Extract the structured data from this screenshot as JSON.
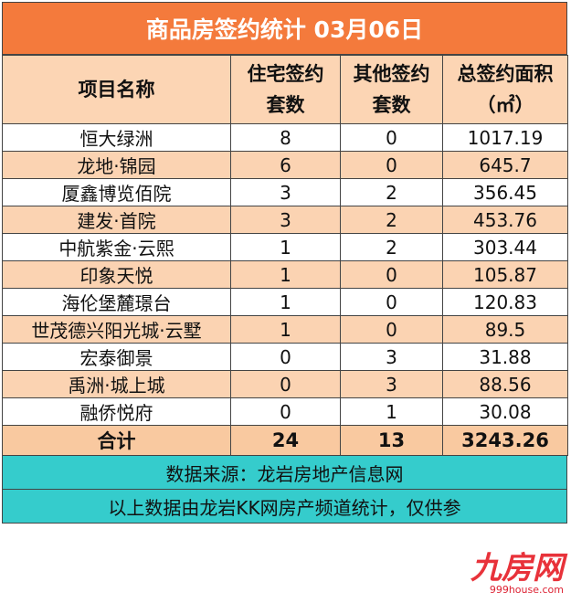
{
  "header": {
    "title": "商品房签约统计 03月06日"
  },
  "table": {
    "columns": [
      [
        "项目名称"
      ],
      [
        "住宅签约",
        "套数"
      ],
      [
        "其他签约",
        "套数"
      ],
      [
        "总签约面积",
        "（㎡）"
      ]
    ],
    "rows": [
      [
        "恒大绿洲",
        8,
        0,
        1017.19
      ],
      [
        "龙地·锦园",
        6,
        0,
        645.7
      ],
      [
        "厦鑫博览佰院",
        3,
        2,
        356.45
      ],
      [
        "建发·首院",
        3,
        2,
        453.76
      ],
      [
        "中航紫金·云熙",
        1,
        2,
        303.44
      ],
      [
        "印象天悦",
        1,
        0,
        105.87
      ],
      [
        "海伦堡麓璟台",
        1,
        0,
        120.83
      ],
      [
        "世茂德兴阳光城·云墅",
        1,
        0,
        89.5
      ],
      [
        "宏泰御景",
        0,
        3,
        31.88
      ],
      [
        "禹洲·城上城",
        0,
        3,
        88.56
      ],
      [
        "融侨悦府",
        0,
        1,
        30.08
      ]
    ],
    "total": [
      "合计",
      24,
      13,
      3243.26
    ]
  },
  "footer": {
    "source": "数据来源：龙岩房地产信息网",
    "note": "以上数据由龙岩KK网房产频道统计，仅供参"
  },
  "watermark": {
    "brand": "九房网",
    "url": "999house.com"
  }
}
